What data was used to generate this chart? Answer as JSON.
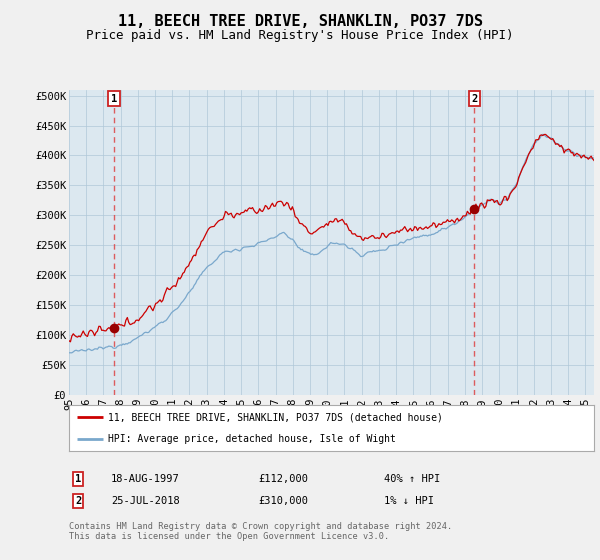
{
  "title": "11, BEECH TREE DRIVE, SHANKLIN, PO37 7DS",
  "subtitle": "Price paid vs. HM Land Registry's House Price Index (HPI)",
  "title_fontsize": 11,
  "subtitle_fontsize": 9,
  "red_line_label": "11, BEECH TREE DRIVE, SHANKLIN, PO37 7DS (detached house)",
  "blue_line_label": "HPI: Average price, detached house, Isle of Wight",
  "annotation1_date": "18-AUG-1997",
  "annotation1_price": "£112,000",
  "annotation1_hpi": "40% ↑ HPI",
  "annotation2_date": "25-JUL-2018",
  "annotation2_price": "£310,000",
  "annotation2_hpi": "1% ↓ HPI",
  "footer": "Contains HM Land Registry data © Crown copyright and database right 2024.\nThis data is licensed under the Open Government Licence v3.0.",
  "ylim": [
    0,
    510000
  ],
  "yticks": [
    0,
    50000,
    100000,
    150000,
    200000,
    250000,
    300000,
    350000,
    400000,
    450000,
    500000
  ],
  "ytick_labels": [
    "£0",
    "£50K",
    "£100K",
    "£150K",
    "£200K",
    "£250K",
    "£300K",
    "£350K",
    "£400K",
    "£450K",
    "£500K"
  ],
  "background_color": "#f0f0f0",
  "plot_bg_color": "#dce8f0",
  "red_color": "#cc0000",
  "blue_color": "#7aa8cc",
  "dashed_color": "#dd4444",
  "marker_color": "#990000",
  "purchase1_year": 1997.62,
  "purchase1_price": 112000,
  "purchase2_year": 2018.55,
  "purchase2_price": 310000,
  "xmin": 1995.0,
  "xmax": 2025.5,
  "xticks": [
    1995,
    1996,
    1997,
    1998,
    1999,
    2000,
    2001,
    2002,
    2003,
    2004,
    2005,
    2006,
    2007,
    2008,
    2009,
    2010,
    2011,
    2012,
    2013,
    2014,
    2015,
    2016,
    2017,
    2018,
    2019,
    2020,
    2021,
    2022,
    2023,
    2024,
    2025
  ]
}
